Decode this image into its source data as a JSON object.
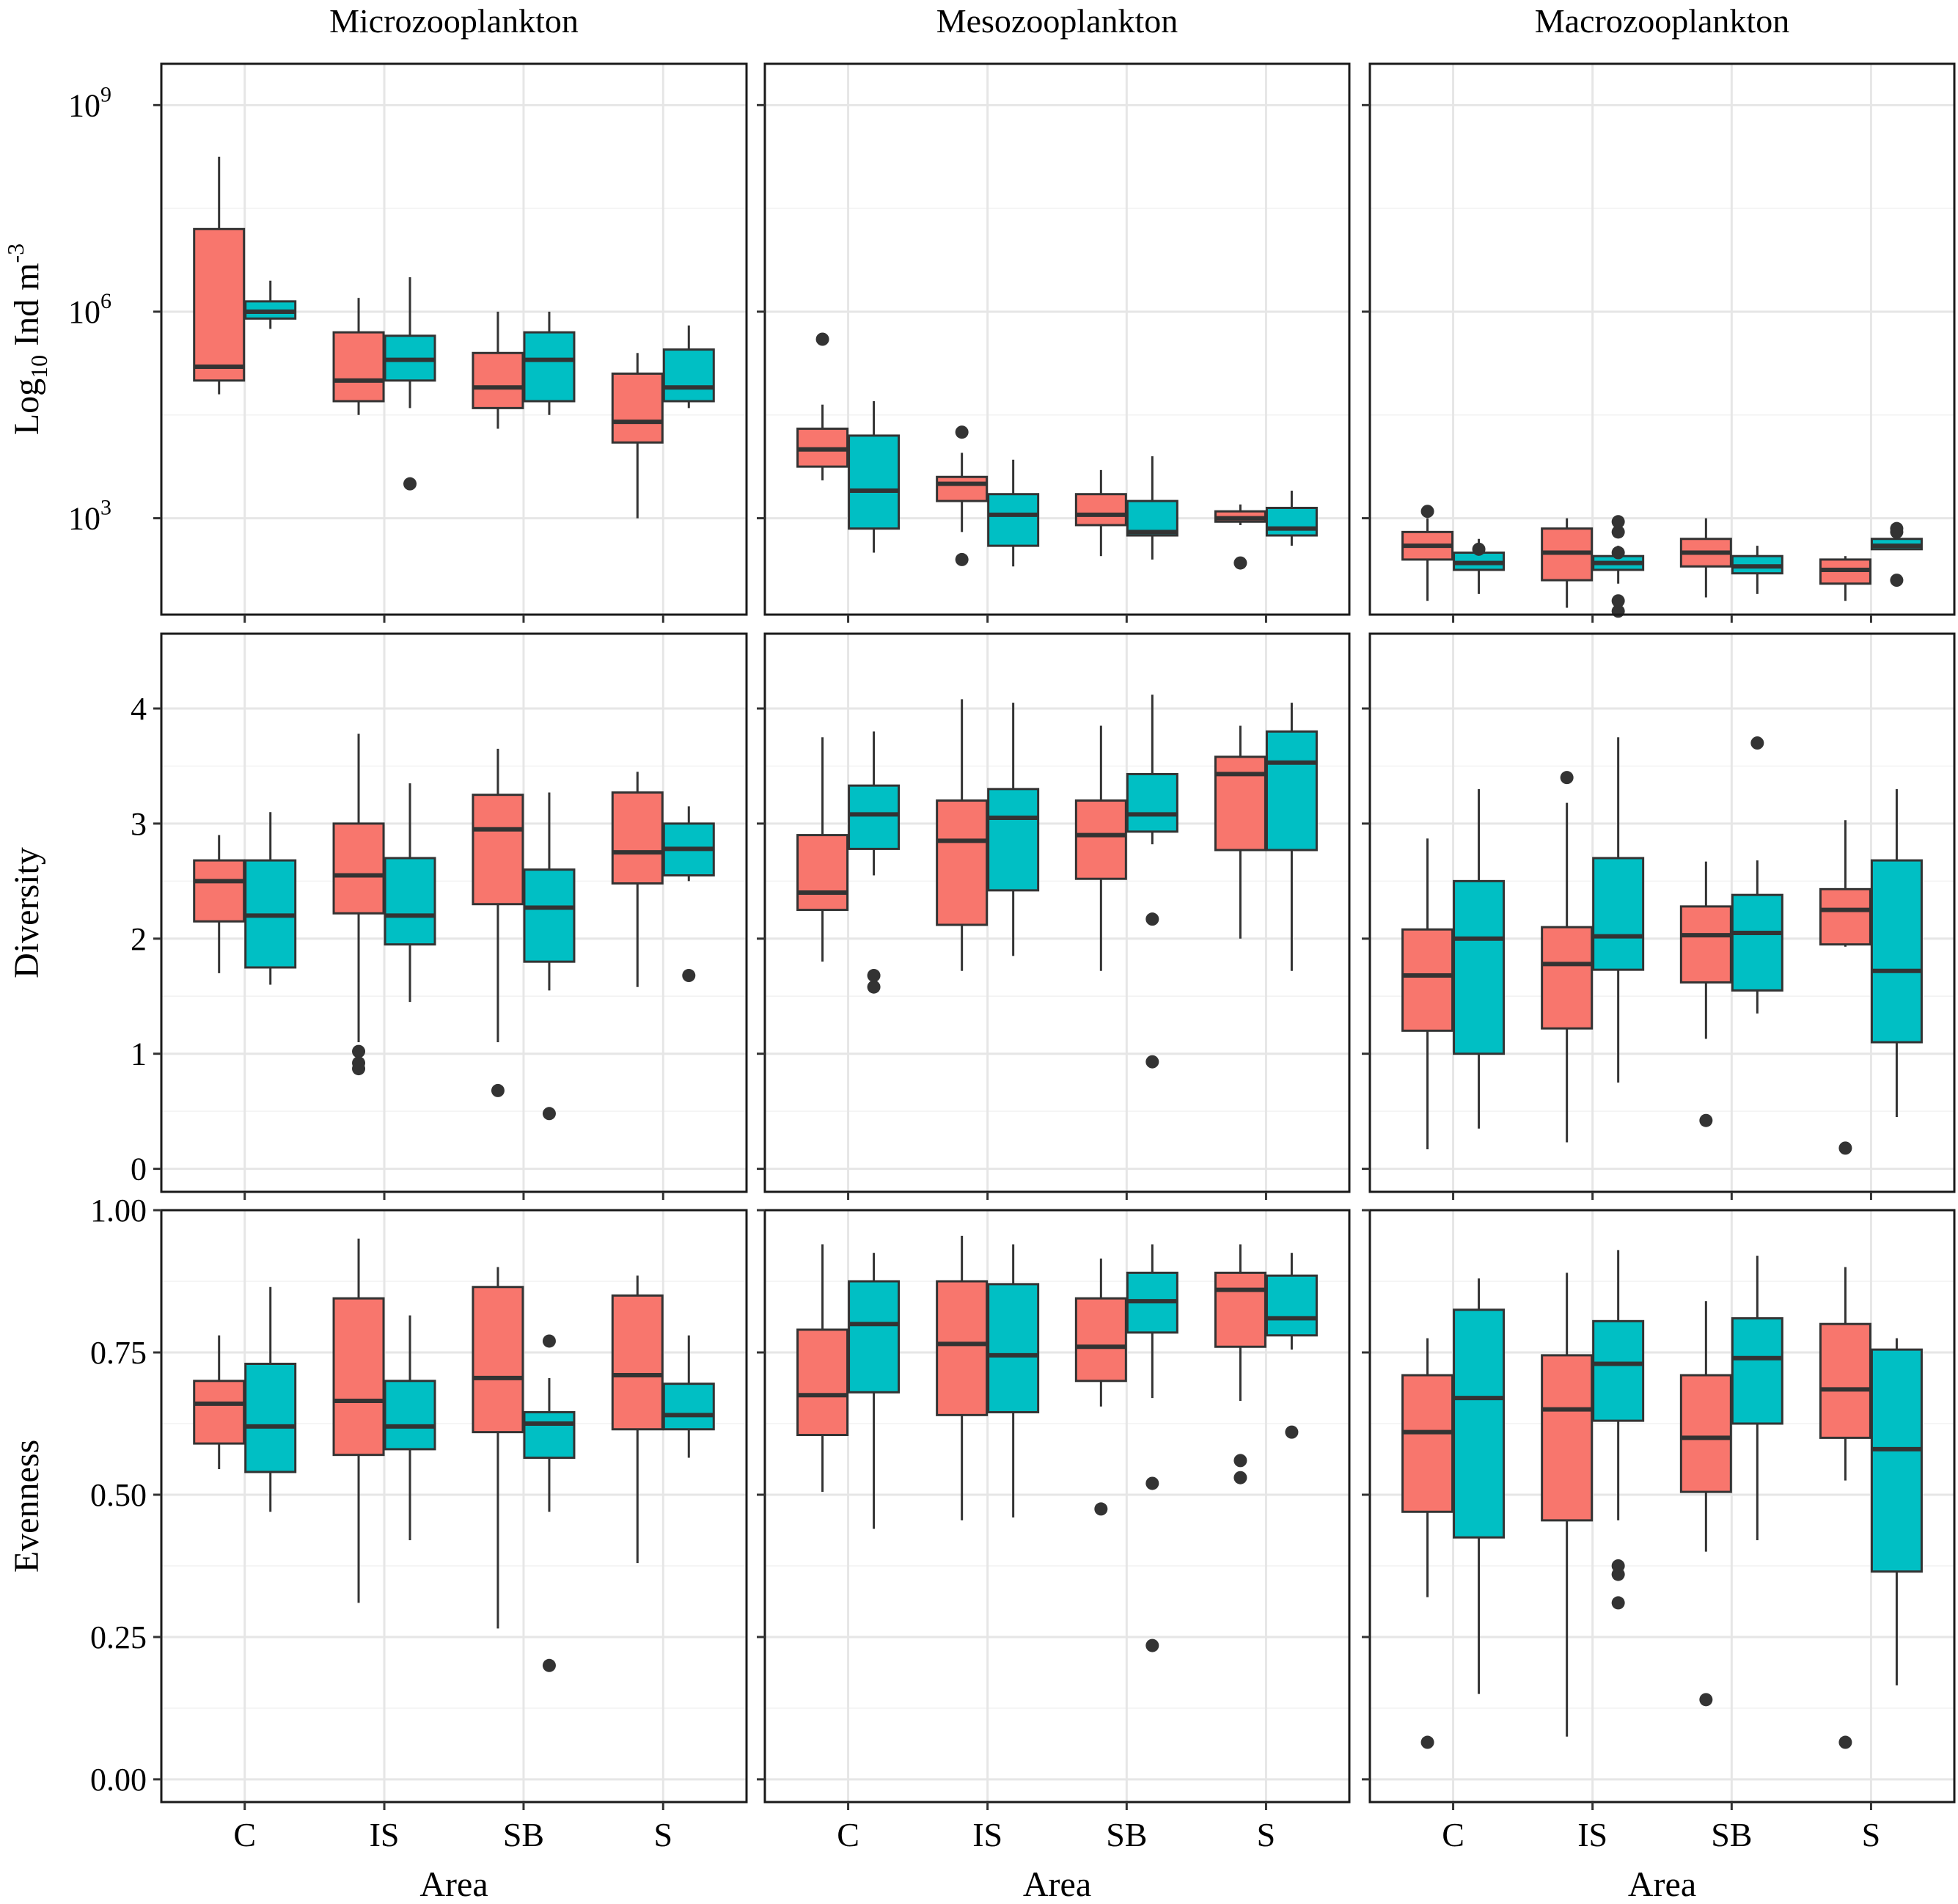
{
  "chart_data": {
    "type": "boxplot",
    "facet_columns": [
      "Microzooplankton",
      "Mesozooplankton",
      "Macrozooplankton"
    ],
    "facet_rows": [
      {
        "key": "abundance",
        "ylabel": "Log10 Ind m-3",
        "ylabel_base": "Log",
        "ylabel_sub": "10",
        "ylabel_mid": " Ind m",
        "ylabel_sup": "-3",
        "scale": "log10",
        "ylim": [
          1.6,
          9.6
        ],
        "ticks": [
          3,
          6,
          9
        ],
        "tick_labels_base": [
          "10",
          "10",
          "10"
        ],
        "tick_labels_exp": [
          "3",
          "6",
          "9"
        ]
      },
      {
        "key": "diversity",
        "ylabel": "Diversity",
        "scale": "linear",
        "ylim": [
          -0.2,
          4.65
        ],
        "ticks": [
          0,
          1,
          2,
          3,
          4
        ],
        "tick_labels": [
          "0",
          "1",
          "2",
          "3",
          "4"
        ]
      },
      {
        "key": "evenness",
        "ylabel": "Evenness",
        "scale": "linear",
        "ylim": [
          -0.04,
          1.0
        ],
        "ticks": [
          0,
          0.25,
          0.5,
          0.75,
          1.0
        ],
        "tick_labels": [
          "0.00",
          "0.25",
          "0.50",
          "0.75",
          "1.00"
        ]
      }
    ],
    "xlabel": "Area",
    "categories": [
      "C",
      "IS",
      "SB",
      "S"
    ],
    "series_colors": [
      "#f8766d",
      "#00bfc4"
    ],
    "panels": [
      {
        "row": "abundance",
        "col": "Microzooplankton",
        "groups": [
          [
            {
              "lo": 4.8,
              "q1": 5.0,
              "med": 5.2,
              "q3": 7.2,
              "hi": 8.25,
              "out": []
            },
            {
              "lo": 5.75,
              "q1": 5.9,
              "med": 6.0,
              "q3": 6.15,
              "hi": 6.45,
              "out": []
            }
          ],
          [
            {
              "lo": 4.5,
              "q1": 4.7,
              "med": 5.0,
              "q3": 5.7,
              "hi": 6.2,
              "out": []
            },
            {
              "lo": 4.6,
              "q1": 5.0,
              "med": 5.3,
              "q3": 5.65,
              "hi": 6.5,
              "out": [
                3.5
              ]
            }
          ],
          [
            {
              "lo": 4.3,
              "q1": 4.6,
              "med": 4.9,
              "q3": 5.4,
              "hi": 6.0,
              "out": []
            },
            {
              "lo": 4.5,
              "q1": 4.7,
              "med": 5.3,
              "q3": 5.7,
              "hi": 6.0,
              "out": []
            }
          ],
          [
            {
              "lo": 3.0,
              "q1": 4.1,
              "med": 4.4,
              "q3": 5.1,
              "hi": 5.4,
              "out": []
            },
            {
              "lo": 4.6,
              "q1": 4.7,
              "med": 4.9,
              "q3": 5.45,
              "hi": 5.8,
              "out": []
            }
          ]
        ]
      },
      {
        "row": "abundance",
        "col": "Mesozooplankton",
        "groups": [
          [
            {
              "lo": 3.55,
              "q1": 3.75,
              "med": 4.0,
              "q3": 4.3,
              "hi": 4.65,
              "out": [
                5.6
              ]
            },
            {
              "lo": 2.5,
              "q1": 2.85,
              "med": 3.4,
              "q3": 4.2,
              "hi": 4.7,
              "out": []
            }
          ],
          [
            {
              "lo": 2.8,
              "q1": 3.25,
              "med": 3.5,
              "q3": 3.6,
              "hi": 3.95,
              "out": [
                2.4,
                4.25
              ]
            },
            {
              "lo": 2.3,
              "q1": 2.6,
              "med": 3.05,
              "q3": 3.35,
              "hi": 3.85,
              "out": []
            }
          ],
          [
            {
              "lo": 2.45,
              "q1": 2.9,
              "med": 3.05,
              "q3": 3.35,
              "hi": 3.7,
              "out": []
            },
            {
              "lo": 2.4,
              "q1": 2.75,
              "med": 2.8,
              "q3": 3.25,
              "hi": 3.9,
              "out": []
            }
          ],
          [
            {
              "lo": 2.9,
              "q1": 2.95,
              "med": 3.0,
              "q3": 3.1,
              "hi": 3.2,
              "out": [
                2.35
              ]
            },
            {
              "lo": 2.6,
              "q1": 2.75,
              "med": 2.85,
              "q3": 3.15,
              "hi": 3.4,
              "out": []
            }
          ]
        ]
      },
      {
        "row": "abundance",
        "col": "Macrozooplankton",
        "groups": [
          [
            {
              "lo": 1.8,
              "q1": 2.4,
              "med": 2.6,
              "q3": 2.8,
              "hi": 3.0,
              "out": [
                3.1
              ]
            },
            {
              "lo": 1.9,
              "q1": 2.25,
              "med": 2.35,
              "q3": 2.5,
              "hi": 2.7,
              "out": [
                2.55
              ]
            }
          ],
          [
            {
              "lo": 1.7,
              "q1": 2.1,
              "med": 2.5,
              "q3": 2.85,
              "hi": 3.0,
              "out": []
            },
            {
              "lo": 2.05,
              "q1": 2.25,
              "med": 2.35,
              "q3": 2.45,
              "hi": 2.6,
              "out": [
                1.65,
                1.8,
                2.5,
                2.8,
                2.95
              ]
            }
          ],
          [
            {
              "lo": 1.85,
              "q1": 2.3,
              "med": 2.5,
              "q3": 2.7,
              "hi": 3.0,
              "out": []
            },
            {
              "lo": 1.9,
              "q1": 2.2,
              "med": 2.3,
              "q3": 2.45,
              "hi": 2.6,
              "out": []
            }
          ],
          [
            {
              "lo": 1.8,
              "q1": 2.05,
              "med": 2.25,
              "q3": 2.4,
              "hi": 2.45,
              "out": []
            },
            {
              "lo": 2.55,
              "q1": 2.55,
              "med": 2.6,
              "q3": 2.7,
              "hi": 2.75,
              "out": [
                2.1,
                2.8,
                2.85
              ]
            }
          ]
        ]
      },
      {
        "row": "diversity",
        "col": "Microzooplankton",
        "groups": [
          [
            {
              "lo": 1.7,
              "q1": 2.15,
              "med": 2.5,
              "q3": 2.68,
              "hi": 2.9,
              "out": []
            },
            {
              "lo": 1.6,
              "q1": 1.75,
              "med": 2.2,
              "q3": 2.68,
              "hi": 3.1,
              "out": []
            }
          ],
          [
            {
              "lo": 1.1,
              "q1": 2.22,
              "med": 2.55,
              "q3": 3.0,
              "hi": 3.78,
              "out": [
                0.87,
                0.92,
                1.02
              ]
            },
            {
              "lo": 1.45,
              "q1": 1.95,
              "med": 2.2,
              "q3": 2.7,
              "hi": 3.35,
              "out": []
            }
          ],
          [
            {
              "lo": 1.1,
              "q1": 2.3,
              "med": 2.95,
              "q3": 3.25,
              "hi": 3.65,
              "out": [
                0.68
              ]
            },
            {
              "lo": 1.55,
              "q1": 1.8,
              "med": 2.27,
              "q3": 2.6,
              "hi": 3.27,
              "out": [
                0.48
              ]
            }
          ],
          [
            {
              "lo": 1.58,
              "q1": 2.48,
              "med": 2.75,
              "q3": 3.27,
              "hi": 3.45,
              "out": []
            },
            {
              "lo": 2.5,
              "q1": 2.55,
              "med": 2.78,
              "q3": 3.0,
              "hi": 3.15,
              "out": [
                1.68
              ]
            }
          ]
        ]
      },
      {
        "row": "diversity",
        "col": "Mesozooplankton",
        "groups": [
          [
            {
              "lo": 1.8,
              "q1": 2.25,
              "med": 2.4,
              "q3": 2.9,
              "hi": 3.75,
              "out": []
            },
            {
              "lo": 2.55,
              "q1": 2.78,
              "med": 3.08,
              "q3": 3.33,
              "hi": 3.8,
              "out": [
                1.58,
                1.68
              ]
            }
          ],
          [
            {
              "lo": 1.72,
              "q1": 2.12,
              "med": 2.85,
              "q3": 3.2,
              "hi": 4.08,
              "out": []
            },
            {
              "lo": 1.85,
              "q1": 2.42,
              "med": 3.05,
              "q3": 3.3,
              "hi": 4.05,
              "out": []
            }
          ],
          [
            {
              "lo": 1.72,
              "q1": 2.52,
              "med": 2.9,
              "q3": 3.2,
              "hi": 3.85,
              "out": []
            },
            {
              "lo": 2.82,
              "q1": 2.93,
              "med": 3.08,
              "q3": 3.43,
              "hi": 4.12,
              "out": [
                0.93,
                2.17
              ]
            }
          ],
          [
            {
              "lo": 2.0,
              "q1": 2.77,
              "med": 3.43,
              "q3": 3.58,
              "hi": 3.85,
              "out": []
            },
            {
              "lo": 1.72,
              "q1": 2.77,
              "med": 3.53,
              "q3": 3.8,
              "hi": 4.05,
              "out": []
            }
          ]
        ]
      },
      {
        "row": "diversity",
        "col": "Macrozooplankton",
        "groups": [
          [
            {
              "lo": 0.17,
              "q1": 1.2,
              "med": 1.68,
              "q3": 2.08,
              "hi": 2.87,
              "out": []
            },
            {
              "lo": 0.35,
              "q1": 1.0,
              "med": 2.0,
              "q3": 2.5,
              "hi": 3.3,
              "out": []
            }
          ],
          [
            {
              "lo": 0.23,
              "q1": 1.22,
              "med": 1.78,
              "q3": 2.1,
              "hi": 3.18,
              "out": [
                3.4
              ]
            },
            {
              "lo": 0.75,
              "q1": 1.73,
              "med": 2.02,
              "q3": 2.7,
              "hi": 3.75,
              "out": []
            }
          ],
          [
            {
              "lo": 1.13,
              "q1": 1.62,
              "med": 2.03,
              "q3": 2.28,
              "hi": 2.67,
              "out": [
                0.42
              ]
            },
            {
              "lo": 1.35,
              "q1": 1.55,
              "med": 2.05,
              "q3": 2.38,
              "hi": 2.68,
              "out": [
                3.7
              ]
            }
          ],
          [
            {
              "lo": 1.93,
              "q1": 1.95,
              "med": 2.25,
              "q3": 2.43,
              "hi": 3.03,
              "out": [
                0.18
              ]
            },
            {
              "lo": 0.45,
              "q1": 1.1,
              "med": 1.72,
              "q3": 2.68,
              "hi": 3.3,
              "out": []
            }
          ]
        ]
      },
      {
        "row": "evenness",
        "col": "Microzooplankton",
        "groups": [
          [
            {
              "lo": 0.545,
              "q1": 0.59,
              "med": 0.66,
              "q3": 0.7,
              "hi": 0.78,
              "out": []
            },
            {
              "lo": 0.47,
              "q1": 0.54,
              "med": 0.62,
              "q3": 0.73,
              "hi": 0.865,
              "out": []
            }
          ],
          [
            {
              "lo": 0.31,
              "q1": 0.57,
              "med": 0.665,
              "q3": 0.845,
              "hi": 0.95,
              "out": []
            },
            {
              "lo": 0.42,
              "q1": 0.58,
              "med": 0.62,
              "q3": 0.7,
              "hi": 0.815,
              "out": []
            }
          ],
          [
            {
              "lo": 0.265,
              "q1": 0.61,
              "med": 0.705,
              "q3": 0.865,
              "hi": 0.9,
              "out": []
            },
            {
              "lo": 0.47,
              "q1": 0.565,
              "med": 0.625,
              "q3": 0.645,
              "hi": 0.705,
              "out": [
                0.2,
                0.77
              ]
            }
          ],
          [
            {
              "lo": 0.38,
              "q1": 0.615,
              "med": 0.71,
              "q3": 0.85,
              "hi": 0.885,
              "out": []
            },
            {
              "lo": 0.565,
              "q1": 0.615,
              "med": 0.64,
              "q3": 0.695,
              "hi": 0.78,
              "out": []
            }
          ]
        ]
      },
      {
        "row": "evenness",
        "col": "Mesozooplankton",
        "groups": [
          [
            {
              "lo": 0.505,
              "q1": 0.605,
              "med": 0.675,
              "q3": 0.79,
              "hi": 0.94,
              "out": []
            },
            {
              "lo": 0.44,
              "q1": 0.68,
              "med": 0.8,
              "q3": 0.875,
              "hi": 0.925,
              "out": []
            }
          ],
          [
            {
              "lo": 0.455,
              "q1": 0.64,
              "med": 0.765,
              "q3": 0.875,
              "hi": 0.955,
              "out": []
            },
            {
              "lo": 0.46,
              "q1": 0.645,
              "med": 0.745,
              "q3": 0.87,
              "hi": 0.94,
              "out": []
            }
          ],
          [
            {
              "lo": 0.655,
              "q1": 0.7,
              "med": 0.76,
              "q3": 0.845,
              "hi": 0.915,
              "out": [
                0.475
              ]
            },
            {
              "lo": 0.67,
              "q1": 0.785,
              "med": 0.84,
              "q3": 0.89,
              "hi": 0.94,
              "out": [
                0.235,
                0.52
              ]
            }
          ],
          [
            {
              "lo": 0.665,
              "q1": 0.76,
              "med": 0.86,
              "q3": 0.89,
              "hi": 0.94,
              "out": [
                0.53,
                0.56
              ]
            },
            {
              "lo": 0.755,
              "q1": 0.78,
              "med": 0.81,
              "q3": 0.885,
              "hi": 0.925,
              "out": [
                0.61
              ]
            }
          ]
        ]
      },
      {
        "row": "evenness",
        "col": "Macrozooplankton",
        "groups": [
          [
            {
              "lo": 0.32,
              "q1": 0.47,
              "med": 0.61,
              "q3": 0.71,
              "hi": 0.775,
              "out": [
                0.065
              ]
            },
            {
              "lo": 0.15,
              "q1": 0.425,
              "med": 0.67,
              "q3": 0.825,
              "hi": 0.88,
              "out": []
            }
          ],
          [
            {
              "lo": 0.075,
              "q1": 0.455,
              "med": 0.65,
              "q3": 0.745,
              "hi": 0.89,
              "out": []
            },
            {
              "lo": 0.455,
              "q1": 0.63,
              "med": 0.73,
              "q3": 0.805,
              "hi": 0.93,
              "out": [
                0.31,
                0.36,
                0.375
              ]
            }
          ],
          [
            {
              "lo": 0.4,
              "q1": 0.505,
              "med": 0.6,
              "q3": 0.71,
              "hi": 0.84,
              "out": [
                0.14
              ]
            },
            {
              "lo": 0.42,
              "q1": 0.625,
              "med": 0.74,
              "q3": 0.81,
              "hi": 0.92,
              "out": []
            }
          ],
          [
            {
              "lo": 0.525,
              "q1": 0.6,
              "med": 0.685,
              "q3": 0.8,
              "hi": 0.9,
              "out": [
                0.065
              ]
            },
            {
              "lo": 0.165,
              "q1": 0.365,
              "med": 0.58,
              "q3": 0.755,
              "hi": 0.775,
              "out": []
            }
          ]
        ]
      }
    ]
  }
}
